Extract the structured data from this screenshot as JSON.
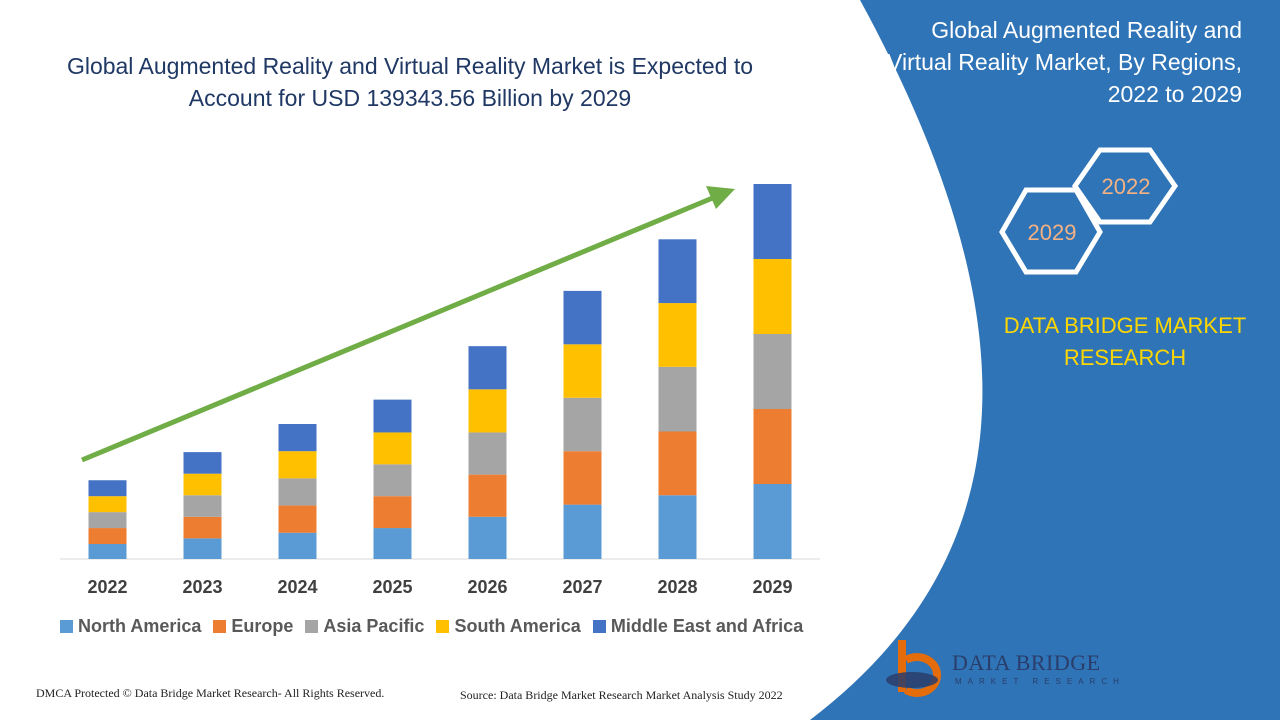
{
  "title": "Global Augmented Reality and Virtual Reality Market is Expected to Account for USD 139343.56 Billion by 2029",
  "side_panel": {
    "title": "Global Augmented Reality and Virtual Reality Market, By Regions, 2022 to 2029",
    "hex_year_start": "2022",
    "hex_year_end": "2029",
    "brand": "DATA BRIDGE MARKET RESEARCH",
    "panel_color": "#2f74b6",
    "brand_color": "#ffd700"
  },
  "logo": {
    "name": "DATA BRIDGE",
    "tagline": "MARKET RESEARCH"
  },
  "footer": {
    "copyright": "DMCA Protected © Data Bridge Market Research- All Rights Reserved.",
    "source": "Source: Data Bridge Market Research Market Analysis Study 2022"
  },
  "chart_data": {
    "type": "bar",
    "stacked": true,
    "title": "Global Augmented Reality and Virtual Reality Market is Expected to Account for USD 139343.56 Billion by 2029",
    "categories": [
      "2022",
      "2023",
      "2024",
      "2025",
      "2026",
      "2027",
      "2028",
      "2029"
    ],
    "series": [
      {
        "name": "North America",
        "color": "#5b9bd5",
        "values": [
          16,
          22,
          28,
          33,
          45,
          58,
          68,
          80
        ]
      },
      {
        "name": "Europe",
        "color": "#ed7d31",
        "values": [
          17,
          23,
          29,
          34,
          45,
          57,
          68,
          80
        ]
      },
      {
        "name": "Asia Pacific",
        "color": "#a5a5a5",
        "values": [
          17,
          23,
          29,
          34,
          45,
          57,
          69,
          80
        ]
      },
      {
        "name": "South America",
        "color": "#ffc000",
        "values": [
          17,
          23,
          29,
          34,
          46,
          57,
          68,
          80
        ]
      },
      {
        "name": "Middle East and Africa",
        "color": "#4472c4",
        "values": [
          17,
          23,
          29,
          35,
          46,
          57,
          68,
          80
        ]
      }
    ],
    "ylim": [
      0,
      400
    ],
    "trend_arrow": {
      "color": "#70ad47"
    },
    "legend_position": "bottom",
    "grid": false
  }
}
